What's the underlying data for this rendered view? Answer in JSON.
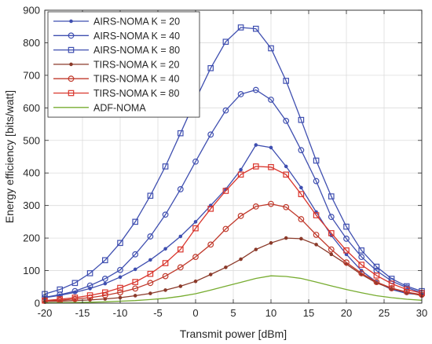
{
  "chart_data": {
    "type": "line",
    "title": "",
    "xlabel": "Transmit power [dBm]",
    "ylabel": "Energy efficiency [bits/watt]",
    "xlim": [
      -20,
      30
    ],
    "ylim": [
      0,
      900
    ],
    "xticks": [
      -20,
      -15,
      -10,
      -5,
      0,
      5,
      10,
      15,
      20,
      25,
      30
    ],
    "yticks": [
      0,
      100,
      200,
      300,
      400,
      500,
      600,
      700,
      800,
      900
    ],
    "grid": true,
    "legend_position": "top-left",
    "x": [
      -20,
      -18,
      -16,
      -14,
      -12,
      -10,
      -8,
      -6,
      -4,
      -2,
      0,
      2,
      4,
      6,
      8,
      10,
      12,
      14,
      16,
      18,
      20,
      22,
      24,
      26,
      28,
      30
    ],
    "series": [
      {
        "name": "AIRS-NOMA K = 20",
        "color": "#3f4fb0",
        "marker": "dot",
        "values": [
          17,
          24,
          33,
          45,
          60,
          80,
          104,
          133,
          167,
          205,
          250,
          300,
          350,
          410,
          486,
          478,
          420,
          355,
          280,
          208,
          150,
          100,
          65,
          42,
          30,
          26
        ]
      },
      {
        "name": "AIRS-NOMA K = 40",
        "color": "#3f4fb0",
        "marker": "circle",
        "values": [
          18,
          26,
          37,
          54,
          75,
          102,
          150,
          205,
          272,
          350,
          435,
          518,
          592,
          642,
          655,
          625,
          560,
          470,
          375,
          265,
          198,
          142,
          100,
          68,
          48,
          32
        ]
      },
      {
        "name": "AIRS-NOMA K = 80",
        "color": "#3f4fb0",
        "marker": "square",
        "values": [
          28,
          42,
          62,
          92,
          132,
          185,
          250,
          330,
          420,
          522,
          625,
          722,
          803,
          847,
          843,
          783,
          683,
          563,
          438,
          328,
          235,
          162,
          112,
          75,
          52,
          37
        ]
      },
      {
        "name": "TIRS-NOMA K = 20",
        "color": "#8b3a2a",
        "marker": "dot",
        "values": [
          5,
          6,
          8,
          10,
          13,
          17,
          23,
          30,
          40,
          52,
          67,
          88,
          110,
          135,
          165,
          185,
          200,
          198,
          180,
          150,
          120,
          88,
          62,
          45,
          33,
          23
        ]
      },
      {
        "name": "TIRS-NOMA K = 40",
        "color": "#c0392b",
        "marker": "circle",
        "values": [
          7,
          9,
          13,
          17,
          24,
          33,
          45,
          62,
          83,
          110,
          142,
          180,
          228,
          268,
          297,
          305,
          295,
          258,
          210,
          165,
          125,
          92,
          65,
          46,
          34,
          26
        ]
      },
      {
        "name": "TIRS-NOMA K = 80",
        "color": "#d9352c",
        "marker": "square",
        "values": [
          8,
          12,
          17,
          24,
          33,
          47,
          65,
          90,
          123,
          165,
          230,
          290,
          345,
          395,
          420,
          418,
          395,
          335,
          270,
          215,
          162,
          118,
          85,
          60,
          42,
          31
        ]
      },
      {
        "name": "ADF-NOMA",
        "color": "#77ac30",
        "marker": "none",
        "values": [
          1,
          1.5,
          2,
          3,
          4,
          6,
          8,
          11,
          15,
          21,
          29,
          40,
          52,
          64,
          76,
          84,
          82,
          76,
          65,
          53,
          42,
          32,
          23,
          17,
          12,
          9
        ]
      }
    ]
  }
}
